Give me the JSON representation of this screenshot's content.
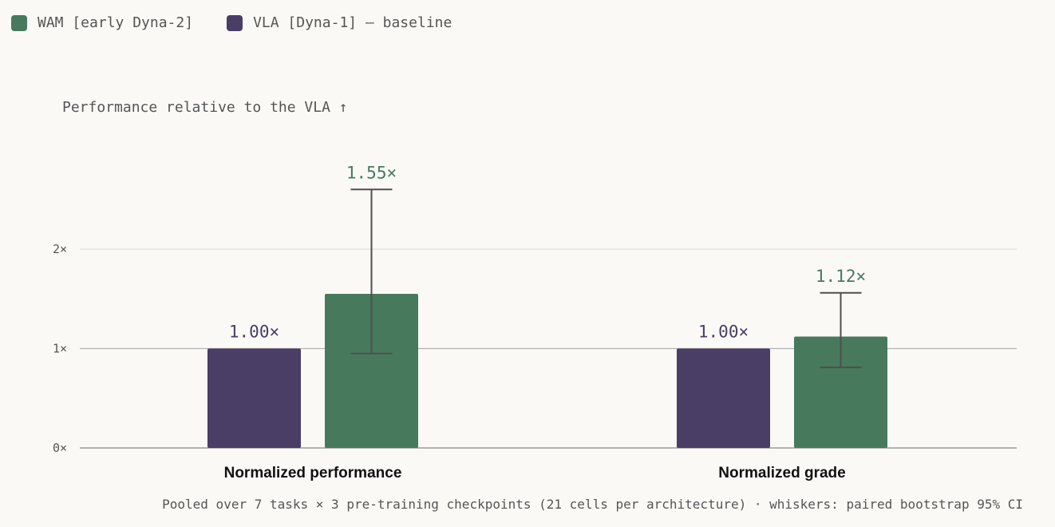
{
  "legend": {
    "items": [
      {
        "label": "WAM [early Dyna-2]",
        "color": "#477a5c"
      },
      {
        "label": "VLA [Dyna-1] — baseline",
        "color": "#4a3d66"
      }
    ]
  },
  "chart_data": {
    "type": "bar",
    "ylabel": "Performance relative to the VLA ↑",
    "xlabel": "",
    "ylim": [
      0,
      2.5
    ],
    "yticks": [
      0,
      1,
      2
    ],
    "ytick_labels": [
      "0×",
      "1×",
      "2×"
    ],
    "grid": true,
    "legend_placement": "top-left",
    "categories": [
      "Normalized performance",
      "Normalized grade"
    ],
    "series": [
      {
        "name": "VLA [Dyna-1] — baseline",
        "color": "#4a3d66",
        "values": [
          1.0,
          1.0
        ],
        "labels": [
          "1.00×",
          "1.00×"
        ]
      },
      {
        "name": "WAM [early Dyna-2]",
        "color": "#477a5c",
        "values": [
          1.55,
          1.12
        ],
        "labels": [
          "1.55×",
          "1.12×"
        ],
        "ci_low": [
          0.95,
          0.81
        ],
        "ci_high": [
          2.6,
          1.56
        ]
      }
    ],
    "footnote": "Pooled over 7 tasks × 3 pre-training checkpoints (21 cells per architecture) · whiskers: paired bootstrap 95% CI"
  }
}
